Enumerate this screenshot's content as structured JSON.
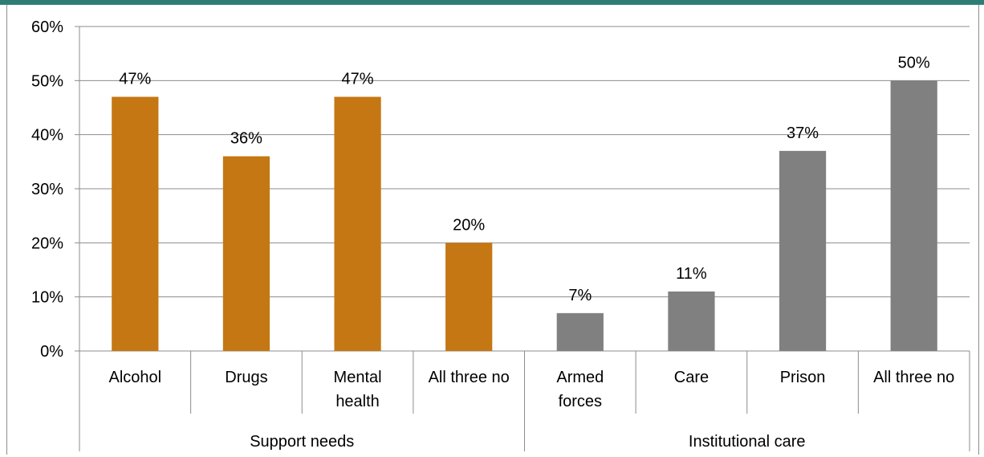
{
  "colors": {
    "header_band": "#2e7d74",
    "support_bar": "#c47713",
    "institutional_bar": "#808080",
    "gridline": "#8c8c8c"
  },
  "chart_data": {
    "type": "bar",
    "title": "",
    "xlabel": "",
    "ylabel": "",
    "ylim": [
      0,
      60
    ],
    "y_ticks": [
      "0%",
      "10%",
      "20%",
      "30%",
      "40%",
      "50%",
      "60%"
    ],
    "grid": true,
    "legend": "none",
    "groups": [
      {
        "name": "Support needs",
        "color": "#c47713",
        "categories": [
          "Alcohol",
          "Drugs",
          "Mental health",
          "All three no"
        ],
        "values": [
          47,
          36,
          47,
          20
        ],
        "labels": [
          "47%",
          "36%",
          "47%",
          "20%"
        ]
      },
      {
        "name": "Institutional care",
        "color": "#808080",
        "categories": [
          "Armed forces",
          "Care",
          "Prison",
          "All three no"
        ],
        "values": [
          7,
          11,
          37,
          50
        ],
        "labels": [
          "7%",
          "11%",
          "37%",
          "50%"
        ]
      }
    ]
  }
}
